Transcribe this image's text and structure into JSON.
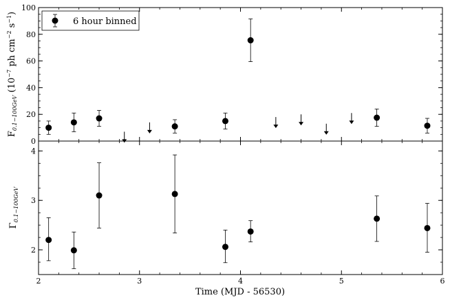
{
  "chart_data": {
    "type": "scatter",
    "xlabel": "Time (MJD - 56530)",
    "xlim": [
      2,
      6
    ],
    "xticks": [
      "2",
      "3",
      "4",
      "5",
      "6"
    ],
    "panels": [
      {
        "ylabel_main": "F",
        "ylabel_sub": "0.1−100GeV",
        "ylabel_unit": " (10",
        "ylabel_exp1": "−7",
        "ylabel_mid": " ph cm",
        "ylabel_exp2": "−2",
        "ylabel_s": " s",
        "ylabel_exp3": "−1",
        "ylabel_close": ")",
        "ylim": [
          0,
          100
        ],
        "yticks": [
          "0",
          "20",
          "40",
          "60",
          "80",
          "100"
        ],
        "legend": "6 hour binned",
        "legend_position": "top-left",
        "points": [
          {
            "x": 2.1,
            "y": 10,
            "lo": 5,
            "hi": 15
          },
          {
            "x": 2.35,
            "y": 14,
            "lo": 7,
            "hi": 21
          },
          {
            "x": 2.6,
            "y": 17,
            "lo": 11,
            "hi": 23
          },
          {
            "x": 3.35,
            "y": 11,
            "lo": 6,
            "hi": 16
          },
          {
            "x": 3.85,
            "y": 15,
            "lo": 9,
            "hi": 21
          },
          {
            "x": 4.1,
            "y": 75.5,
            "lo": 59.5,
            "hi": 91.5
          },
          {
            "x": 5.35,
            "y": 17.5,
            "lo": 11,
            "hi": 24
          },
          {
            "x": 5.85,
            "y": 11.5,
            "lo": 6,
            "hi": 17
          }
        ],
        "upper_limits": [
          {
            "x": 2.85,
            "y": 7
          },
          {
            "x": 3.1,
            "y": 14
          },
          {
            "x": 4.35,
            "y": 18
          },
          {
            "x": 4.6,
            "y": 20
          },
          {
            "x": 4.85,
            "y": 13
          },
          {
            "x": 5.1,
            "y": 21
          }
        ]
      },
      {
        "ylabel_main": "Γ",
        "ylabel_sub": "0.1−100GeV",
        "ylim": [
          1.5,
          4.2
        ],
        "yticks": [
          "2",
          "3",
          "4"
        ],
        "points": [
          {
            "x": 2.1,
            "y": 2.2,
            "lo": 1.78,
            "hi": 2.65
          },
          {
            "x": 2.35,
            "y": 1.99,
            "lo": 1.62,
            "hi": 2.36
          },
          {
            "x": 2.6,
            "y": 3.1,
            "lo": 2.44,
            "hi": 3.76
          },
          {
            "x": 3.35,
            "y": 3.13,
            "lo": 2.34,
            "hi": 3.92
          },
          {
            "x": 3.85,
            "y": 2.06,
            "lo": 1.74,
            "hi": 2.4
          },
          {
            "x": 4.1,
            "y": 2.37,
            "lo": 2.16,
            "hi": 2.59
          },
          {
            "x": 5.35,
            "y": 2.63,
            "lo": 2.17,
            "hi": 3.09
          },
          {
            "x": 5.85,
            "y": 2.44,
            "lo": 1.95,
            "hi": 2.94
          }
        ]
      }
    ]
  }
}
